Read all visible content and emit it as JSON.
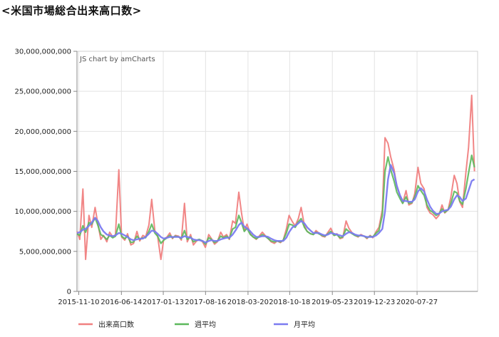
{
  "page": {
    "title": "<米国市場総合出来高口数>"
  },
  "chart_data": {
    "type": "line",
    "credit": "JS chart by amCharts",
    "ylim": [
      0,
      30000000000
    ],
    "yticks": [
      0,
      5000000000,
      10000000000,
      15000000000,
      20000000000,
      25000000000,
      30000000000
    ],
    "ytick_labels": [
      "0",
      "5,000,000,000",
      "10,000,000,000",
      "15,000,000,000",
      "20,000,000,000",
      "25,000,000,000",
      "30,000,000,000"
    ],
    "xlim": [
      "2015-11-01",
      "2021-05-31"
    ],
    "xtick_labels": [
      "2015-11-10",
      "2016-06-14",
      "2017-01-13",
      "2017-08-16",
      "2018-03-20",
      "2018-10-18",
      "2019-05-23",
      "2019-12-23",
      "2020-07-27"
    ],
    "grid": true,
    "legend_position": "bottom",
    "colors": {
      "series_daily": "#f08080",
      "series_weekly": "#5cb85c",
      "series_monthly": "#7b7bf0"
    },
    "series": [
      {
        "name": "出来高口数",
        "resolution": "daily (approximated at half-month points)",
        "x": [
          "2015-11-01",
          "2015-11-15",
          "2015-12-01",
          "2015-12-15",
          "2016-01-01",
          "2016-01-15",
          "2016-02-01",
          "2016-02-15",
          "2016-03-01",
          "2016-03-15",
          "2016-04-01",
          "2016-04-15",
          "2016-05-01",
          "2016-05-15",
          "2016-06-01",
          "2016-06-15",
          "2016-07-01",
          "2016-07-15",
          "2016-08-01",
          "2016-08-15",
          "2016-09-01",
          "2016-09-15",
          "2016-10-01",
          "2016-10-15",
          "2016-11-01",
          "2016-11-15",
          "2016-12-01",
          "2016-12-15",
          "2017-01-01",
          "2017-01-15",
          "2017-02-01",
          "2017-02-15",
          "2017-03-01",
          "2017-03-15",
          "2017-04-01",
          "2017-04-15",
          "2017-05-01",
          "2017-05-15",
          "2017-06-01",
          "2017-06-15",
          "2017-07-01",
          "2017-07-15",
          "2017-08-01",
          "2017-08-15",
          "2017-09-01",
          "2017-09-15",
          "2017-10-01",
          "2017-10-15",
          "2017-11-01",
          "2017-11-15",
          "2017-12-01",
          "2017-12-15",
          "2018-01-01",
          "2018-01-15",
          "2018-02-01",
          "2018-02-15",
          "2018-03-01",
          "2018-03-15",
          "2018-04-01",
          "2018-04-15",
          "2018-05-01",
          "2018-05-15",
          "2018-06-01",
          "2018-06-15",
          "2018-07-01",
          "2018-07-15",
          "2018-08-01",
          "2018-08-15",
          "2018-09-01",
          "2018-09-15",
          "2018-10-01",
          "2018-10-15",
          "2018-11-01",
          "2018-11-15",
          "2018-12-01",
          "2018-12-15",
          "2019-01-01",
          "2019-01-15",
          "2019-02-01",
          "2019-02-15",
          "2019-03-01",
          "2019-03-15",
          "2019-04-01",
          "2019-04-15",
          "2019-05-01",
          "2019-05-15",
          "2019-06-01",
          "2019-06-15",
          "2019-07-01",
          "2019-07-15",
          "2019-08-01",
          "2019-08-15",
          "2019-09-01",
          "2019-09-15",
          "2019-10-01",
          "2019-10-15",
          "2019-11-01",
          "2019-11-15",
          "2019-12-01",
          "2019-12-15",
          "2020-01-01",
          "2020-01-15",
          "2020-02-01",
          "2020-02-15",
          "2020-03-01",
          "2020-03-15",
          "2020-04-01",
          "2020-04-15",
          "2020-05-01",
          "2020-05-15",
          "2020-06-01",
          "2020-06-15",
          "2020-07-01",
          "2020-07-15",
          "2020-08-01",
          "2020-08-15",
          "2020-09-01",
          "2020-09-15",
          "2020-10-01",
          "2020-10-15",
          "2020-11-01",
          "2020-11-15",
          "2020-12-01",
          "2020-12-15",
          "2021-01-01",
          "2021-01-15",
          "2021-02-01",
          "2021-02-15",
          "2021-03-01",
          "2021-03-15",
          "2021-04-01",
          "2021-04-15",
          "2021-05-01",
          "2021-05-15"
        ],
        "values": [
          7500000000,
          6500000000,
          12800000000,
          4000000000,
          9500000000,
          8000000000,
          10500000000,
          8500000000,
          6500000000,
          7000000000,
          6200000000,
          7400000000,
          6800000000,
          7100000000,
          15200000000,
          6800000000,
          6400000000,
          7200000000,
          5800000000,
          6000000000,
          7500000000,
          6300000000,
          7000000000,
          6800000000,
          8300000000,
          11500000000,
          7600000000,
          6900000000,
          4000000000,
          6500000000,
          6800000000,
          7300000000,
          6600000000,
          7000000000,
          6900000000,
          6400000000,
          11000000000,
          6200000000,
          7100000000,
          5800000000,
          6300000000,
          6500000000,
          6200000000,
          5500000000,
          7100000000,
          6600000000,
          5900000000,
          6200000000,
          7400000000,
          6800000000,
          7100000000,
          6500000000,
          8800000000,
          8500000000,
          12400000000,
          9800000000,
          7600000000,
          8400000000,
          7200000000,
          6800000000,
          6500000000,
          6900000000,
          7400000000,
          7000000000,
          6600000000,
          6200000000,
          6000000000,
          6300000000,
          6100000000,
          6400000000,
          7800000000,
          9500000000,
          8700000000,
          8200000000,
          9100000000,
          10500000000,
          8200000000,
          7500000000,
          7200000000,
          7100000000,
          7600000000,
          7300000000,
          6900000000,
          6800000000,
          7400000000,
          7900000000,
          7000000000,
          7200000000,
          6600000000,
          6700000000,
          8800000000,
          7900000000,
          7300000000,
          7000000000,
          6800000000,
          7100000000,
          6900000000,
          6600000000,
          7000000000,
          6700000000,
          7500000000,
          8000000000,
          10200000000,
          19200000000,
          18500000000,
          16800000000,
          15200000000,
          13100000000,
          12000000000,
          11000000000,
          12600000000,
          10800000000,
          11000000000,
          12200000000,
          15500000000,
          13500000000,
          12800000000,
          10500000000,
          9800000000,
          9600000000,
          9100000000,
          9500000000,
          10800000000,
          9800000000,
          10200000000,
          11800000000,
          14500000000,
          13500000000,
          11200000000,
          10500000000,
          14800000000,
          18000000000,
          24500000000,
          15000000000
        ]
      },
      {
        "name": "週平均",
        "resolution": "weekly (approximated at half-month points)",
        "x_same_as": "出来高口数",
        "values": [
          7200000000,
          7000000000,
          8200000000,
          7400000000,
          8600000000,
          8400000000,
          9200000000,
          8300000000,
          7100000000,
          6900000000,
          6500000000,
          7000000000,
          6700000000,
          6900000000,
          8400000000,
          6900000000,
          6600000000,
          6900000000,
          6100000000,
          6200000000,
          6900000000,
          6500000000,
          6700000000,
          6700000000,
          7500000000,
          8400000000,
          7300000000,
          6900000000,
          6000000000,
          6400000000,
          6700000000,
          7000000000,
          6700000000,
          6900000000,
          6800000000,
          6600000000,
          7600000000,
          6500000000,
          6800000000,
          6200000000,
          6400000000,
          6500000000,
          6300000000,
          5900000000,
          6700000000,
          6500000000,
          6100000000,
          6300000000,
          6900000000,
          6700000000,
          6900000000,
          6600000000,
          7800000000,
          8000000000,
          9500000000,
          8600000000,
          7500000000,
          7900000000,
          7100000000,
          6800000000,
          6600000000,
          6800000000,
          7100000000,
          6900000000,
          6600000000,
          6300000000,
          6200000000,
          6300000000,
          6200000000,
          6400000000,
          7300000000,
          8400000000,
          8300000000,
          8000000000,
          8700000000,
          9100000000,
          8000000000,
          7500000000,
          7200000000,
          7100000000,
          7400000000,
          7200000000,
          7000000000,
          6900000000,
          7200000000,
          7500000000,
          7000000000,
          7100000000,
          6700000000,
          6800000000,
          7800000000,
          7500000000,
          7200000000,
          7000000000,
          6900000000,
          7000000000,
          6900000000,
          6700000000,
          6900000000,
          6800000000,
          7300000000,
          7600000000,
          9500000000,
          15000000000,
          16800000000,
          15200000000,
          13800000000,
          12400000000,
          11600000000,
          11000000000,
          11800000000,
          11000000000,
          11100000000,
          11800000000,
          13200000000,
          12600000000,
          12000000000,
          10800000000,
          10100000000,
          9900000000,
          9500000000,
          9700000000,
          10300000000,
          9900000000,
          10200000000,
          11000000000,
          12500000000,
          12300000000,
          11300000000,
          10900000000,
          12800000000,
          14800000000,
          17000000000,
          15500000000
        ]
      },
      {
        "name": "月平均",
        "resolution": "monthly (approximated at half-month points)",
        "x_same_as": "出来高口数",
        "values": [
          7300000000,
          7400000000,
          7700000000,
          7800000000,
          8200000000,
          8600000000,
          9200000000,
          8800000000,
          8000000000,
          7500000000,
          7100000000,
          7000000000,
          6900000000,
          7000000000,
          7300000000,
          7200000000,
          7000000000,
          6800000000,
          6500000000,
          6400000000,
          6500000000,
          6600000000,
          6600000000,
          6800000000,
          7200000000,
          7600000000,
          7500000000,
          7200000000,
          6800000000,
          6600000000,
          6700000000,
          6800000000,
          6800000000,
          6800000000,
          6800000000,
          6700000000,
          6900000000,
          6800000000,
          6700000000,
          6500000000,
          6400000000,
          6400000000,
          6300000000,
          6100000000,
          6300000000,
          6400000000,
          6300000000,
          6300000000,
          6500000000,
          6600000000,
          6700000000,
          6700000000,
          7100000000,
          7600000000,
          8300000000,
          8600000000,
          8100000000,
          7900000000,
          7500000000,
          7100000000,
          6800000000,
          6800000000,
          6900000000,
          6900000000,
          6800000000,
          6600000000,
          6400000000,
          6300000000,
          6300000000,
          6300000000,
          6700000000,
          7400000000,
          8000000000,
          8200000000,
          8500000000,
          8800000000,
          8500000000,
          8000000000,
          7600000000,
          7300000000,
          7300000000,
          7300000000,
          7100000000,
          7000000000,
          7100000000,
          7300000000,
          7200000000,
          7100000000,
          7000000000,
          6900000000,
          7200000000,
          7400000000,
          7300000000,
          7100000000,
          7000000000,
          7000000000,
          6900000000,
          6800000000,
          6800000000,
          6800000000,
          7000000000,
          7300000000,
          7800000000,
          10000000000,
          14000000000,
          15800000000,
          14800000000,
          13200000000,
          12000000000,
          11300000000,
          11300000000,
          11200000000,
          11200000000,
          11500000000,
          12500000000,
          12900000000,
          12500000000,
          11500000000,
          10600000000,
          10100000000,
          9700000000,
          9700000000,
          10000000000,
          10100000000,
          10200000000,
          10600000000,
          11500000000,
          12000000000,
          11800000000,
          11300000000,
          11600000000,
          12600000000,
          13800000000,
          14000000000
        ]
      }
    ]
  }
}
